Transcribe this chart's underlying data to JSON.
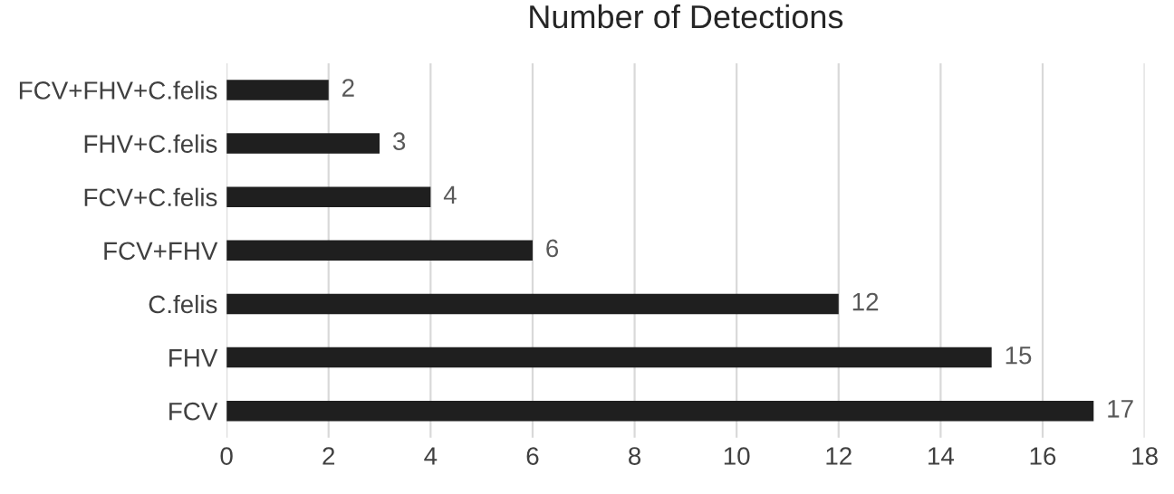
{
  "chart_data": {
    "type": "bar",
    "orientation": "horizontal",
    "title": "Number of Detections",
    "categories": [
      "FCV+FHV+C.felis",
      "FHV+C.felis",
      "FCV+C.felis",
      "FCV+FHV",
      "C.felis",
      "FHV",
      "FCV"
    ],
    "values": [
      2,
      3,
      4,
      6,
      12,
      15,
      17
    ],
    "color": "#1f1f1f",
    "xlim": [
      0,
      18
    ],
    "xticks": [
      0,
      2,
      4,
      6,
      8,
      10,
      12,
      14,
      16,
      18
    ],
    "grid": "x",
    "data_labels": true,
    "legend": false
  }
}
